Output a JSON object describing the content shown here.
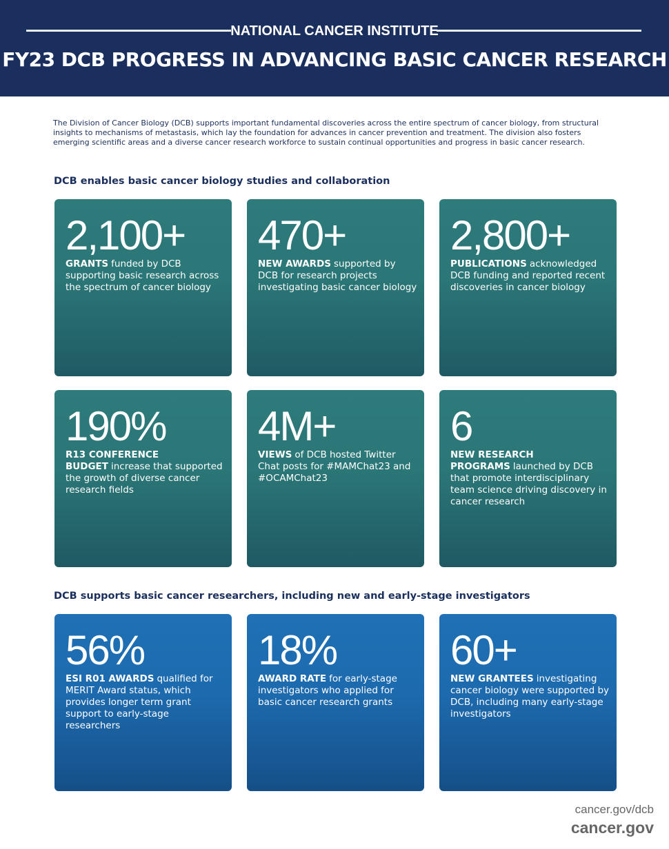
{
  "header": {
    "org": "NATIONAL CANCER INSTITUTE",
    "title": "FY23 DCB PROGRESS IN ADVANCING BASIC CANCER RESEARCH"
  },
  "intro": "The Division of Cancer Biology (DCB) supports important fundamental discoveries across the entire spectrum of cancer biology, from structural insights to mechanisms of metastasis, which lay the foundation for advances in cancer prevention and treatment. The division also fosters emerging scientific areas and a diverse cancer research workforce to sustain continual opportunities and progress in basic cancer research.",
  "sections": [
    {
      "heading": "DCB enables basic cancer biology studies and collaboration",
      "cards": [
        {
          "stat": "2,100+",
          "label": "GRANTS",
          "text": "funded by DCB supporting basic research across the spectrum of cancer biology"
        },
        {
          "stat": "470+",
          "label": "NEW AWARDS",
          "text": "supported by DCB for research projects investigating basic cancer biology"
        },
        {
          "stat": "2,800+",
          "label": "PUBLICATIONS",
          "text": "acknowledged DCB funding and reported recent discoveries in cancer biology"
        },
        {
          "stat": "190%",
          "label": "R13 CONFERENCE BUDGET",
          "text": "increase that supported the growth of diverse cancer research fields"
        },
        {
          "stat": "4M+",
          "label": "VIEWS",
          "text": "of DCB hosted Twitter Chat posts for #MAMChat23 and #OCAMChat23"
        },
        {
          "stat": "6",
          "label": "NEW RESEARCH PROGRAMS",
          "text": "launched by DCB that promote interdisciplinary team science driving discovery in cancer research"
        }
      ]
    },
    {
      "heading": "DCB supports basic cancer researchers, including new and early-stage investigators",
      "cards": [
        {
          "stat": "56%",
          "label": "ESI R01 AWARDS",
          "text": "qualified for MERIT Award status, which provides longer term grant support to early-stage researchers"
        },
        {
          "stat": "18%",
          "label": "AWARD RATE",
          "text": "for early-stage investigators who applied for basic cancer research grants"
        },
        {
          "stat": "60+",
          "label": "NEW GRANTEES",
          "text": "investigating cancer biology were supported by DCB, including many early-stage investigators"
        }
      ]
    }
  ],
  "footer": {
    "url": "cancer.gov/dcb",
    "brand": "cancer.gov"
  }
}
